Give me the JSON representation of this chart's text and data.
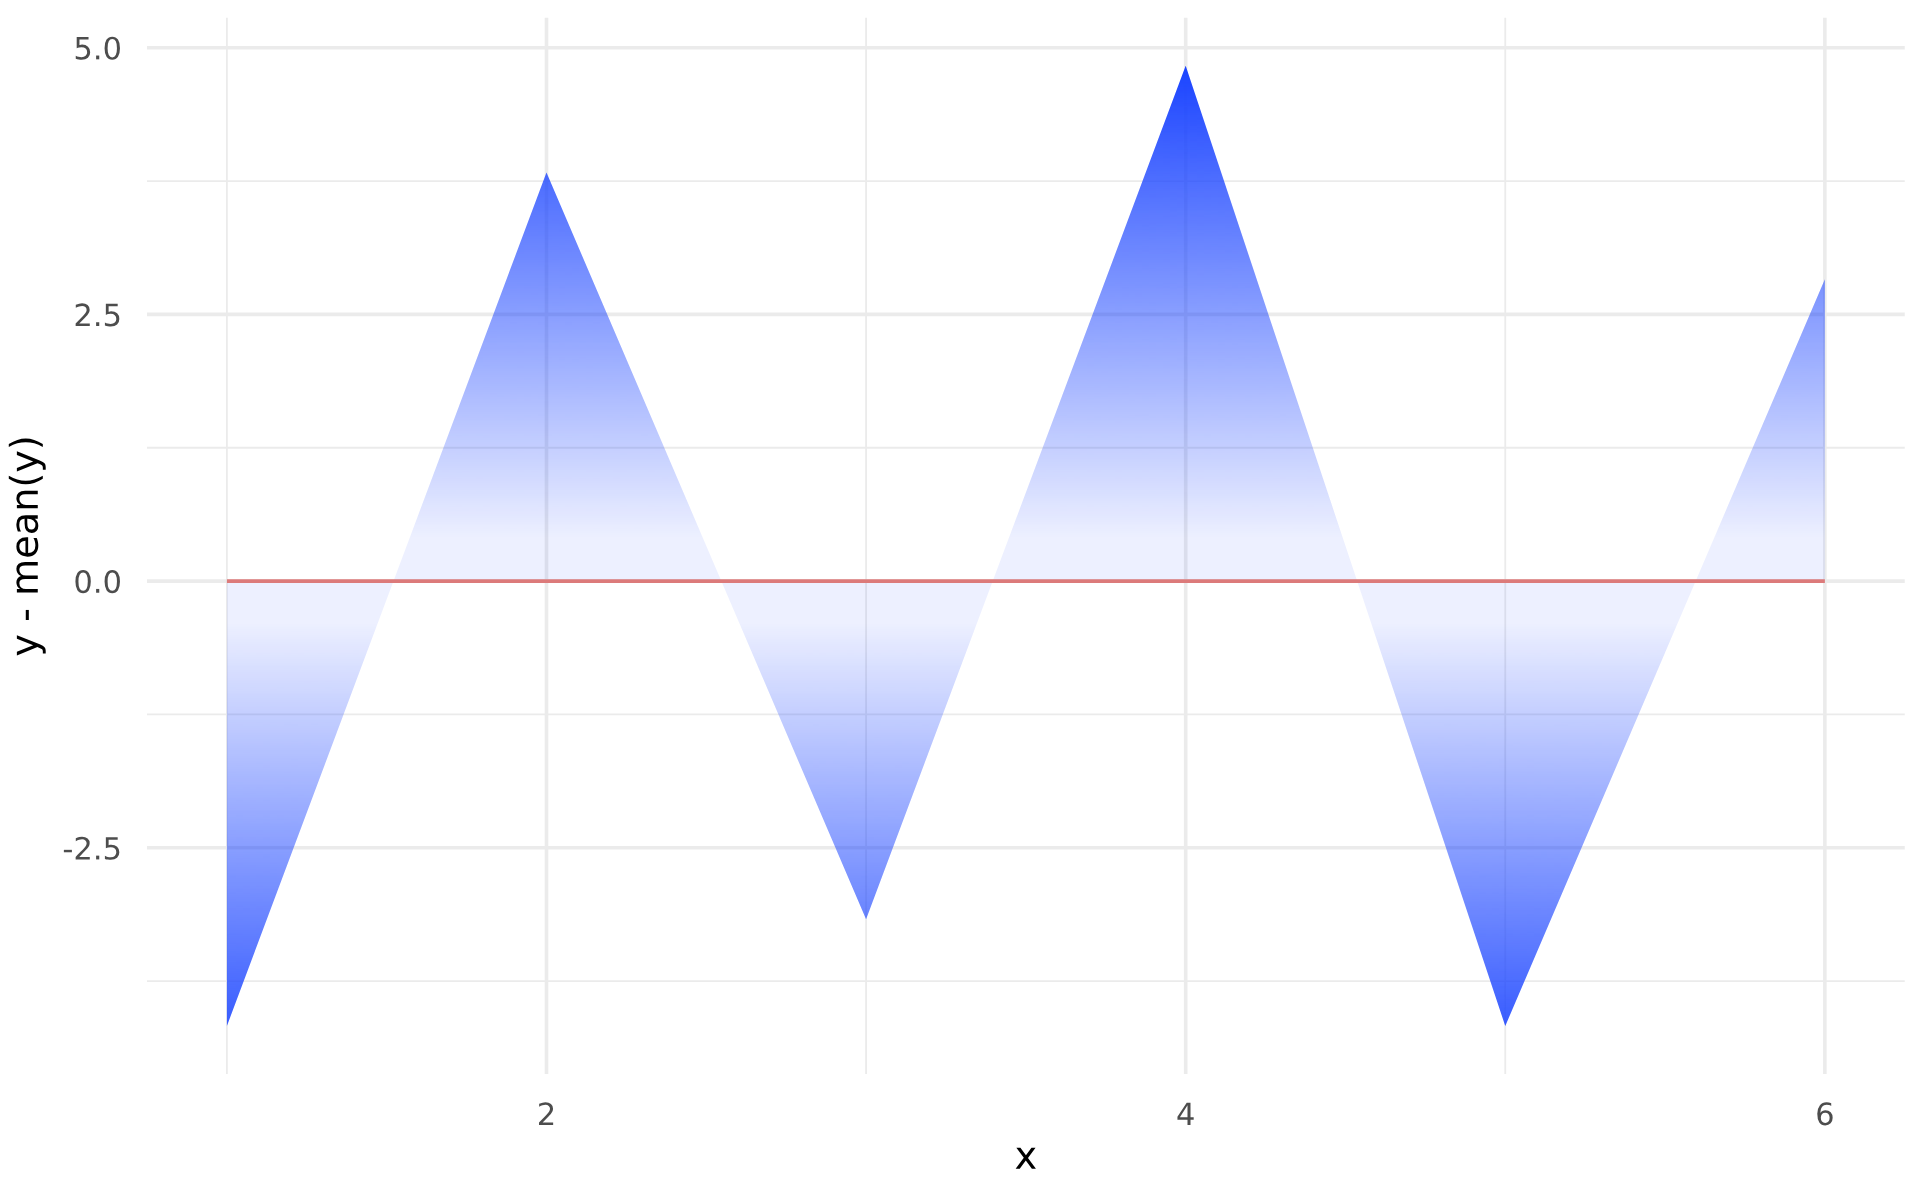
{
  "chart_data": {
    "type": "area",
    "xlabel": "x",
    "ylabel": "y - mean(y)",
    "x": [
      1,
      2,
      3,
      4,
      5,
      6
    ],
    "series": [
      {
        "color": "#1a44ff",
        "values": [
          -4.17,
          3.83,
          -3.17,
          4.83,
          -4.17,
          2.83
        ]
      },
      {
        "type": "line",
        "color": "#dc7a7a",
        "values": [
          0,
          0,
          0,
          0,
          0,
          0
        ]
      }
    ],
    "xlim": [
      0.75,
      6.25
    ],
    "ylim": [
      -4.62,
      5.28
    ],
    "xticks": [
      {
        "value": 1,
        "label": null
      },
      2,
      {
        "value": 3,
        "label": null
      },
      4,
      {
        "value": 5,
        "label": null
      },
      6
    ],
    "yticks": [
      {
        "value": -3.75,
        "label": null
      },
      -2.5,
      {
        "value": -1.25,
        "label": null
      },
      {
        "value": 0,
        "label": "0.0"
      },
      {
        "value": 1.25,
        "label": null
      },
      2.5,
      {
        "value": 3.75,
        "label": null
      },
      {
        "value": 5,
        "label": "5.0"
      }
    ],
    "grid": true
  }
}
